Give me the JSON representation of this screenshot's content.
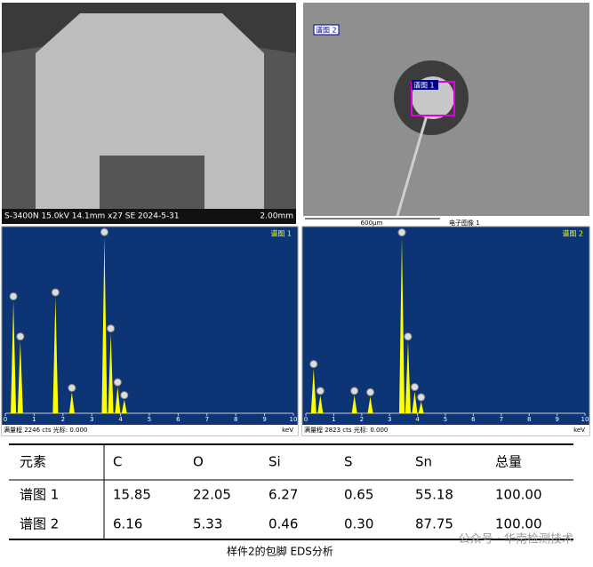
{
  "images": [
    {
      "caption": "S-3400N 15.0kV 14.1mm x27 SE 2024-5-31",
      "scale": "2.00mm"
    },
    {
      "labels": [
        "谱图 2",
        "谱图 1"
      ],
      "scale": "600μm",
      "caption": "电子图像 1"
    }
  ],
  "spectra": [
    {
      "title": "谱图 1",
      "xlim": [
        0,
        10
      ],
      "xticks": [
        0,
        1,
        2,
        3,
        4,
        5,
        6,
        7,
        8,
        9,
        10
      ],
      "xlabel": "keV",
      "footer": "满量程 2246 cts 光标: 0.000",
      "ylim": [
        0,
        2246
      ],
      "peaks": [
        {
          "x": 0.28,
          "y": 1400
        },
        {
          "x": 0.52,
          "y": 900
        },
        {
          "x": 1.74,
          "y": 1450
        },
        {
          "x": 2.31,
          "y": 260
        },
        {
          "x": 3.44,
          "y": 2200
        },
        {
          "x": 3.66,
          "y": 1000
        },
        {
          "x": 3.9,
          "y": 330
        },
        {
          "x": 4.13,
          "y": 170
        }
      ]
    },
    {
      "title": "谱图 2",
      "xlim": [
        0,
        10
      ],
      "xticks": [
        0,
        1,
        2,
        3,
        4,
        5,
        6,
        7,
        8,
        9,
        10
      ],
      "xlabel": "keV",
      "footer": "满量程 2823 cts 光标: 0.000",
      "ylim": [
        0,
        2823
      ],
      "peaks": [
        {
          "x": 0.28,
          "y": 700
        },
        {
          "x": 0.52,
          "y": 280
        },
        {
          "x": 1.74,
          "y": 280
        },
        {
          "x": 2.31,
          "y": 260
        },
        {
          "x": 3.44,
          "y": 2760
        },
        {
          "x": 3.66,
          "y": 1130
        },
        {
          "x": 3.9,
          "y": 340
        },
        {
          "x": 4.13,
          "y": 180
        }
      ]
    }
  ],
  "table": {
    "header": [
      "元素",
      "C",
      "O",
      "Si",
      "S",
      "Sn",
      "总量"
    ],
    "rows": [
      [
        "谱图 1",
        "15.85",
        "22.05",
        "6.27",
        "0.65",
        "55.18",
        "100.00"
      ],
      [
        "谱图 2",
        "6.16",
        "5.33",
        "0.46",
        "0.30",
        "87.75",
        "100.00"
      ]
    ]
  },
  "caption": "样件2的包脚 EDS分析",
  "watermark": "公众号 · 华南检测技术"
}
